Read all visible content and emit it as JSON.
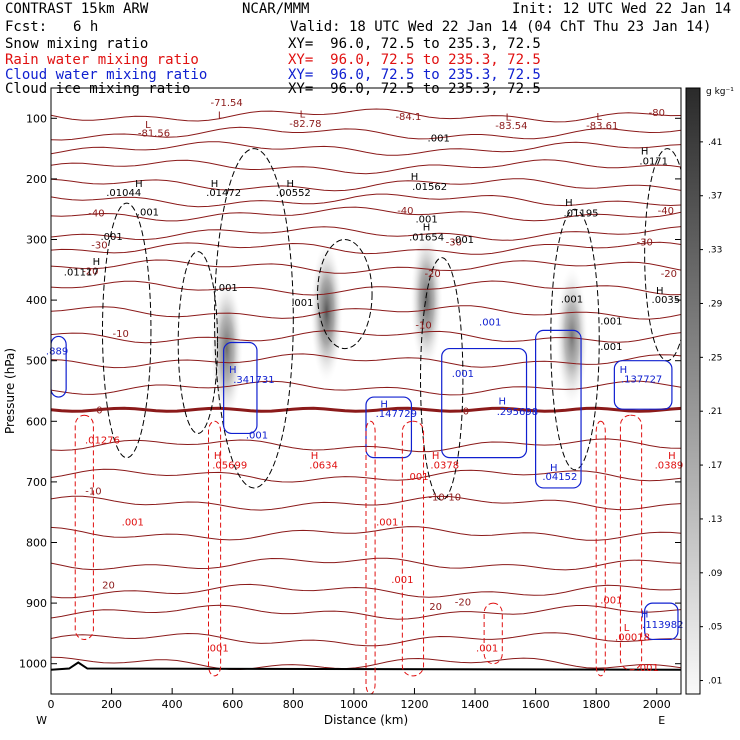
{
  "header": {
    "model": "CONTRAST 15km ARW",
    "center": "NCAR/MMM",
    "init": "Init: 12 UTC Wed 22 Jan 14",
    "fcst_label": "Fcst:",
    "fcst_value": "6 h",
    "valid": "Valid: 18 UTC Wed 22 Jan 14 (04 ChT Thu 23 Jan 14)",
    "fields": [
      {
        "name": "Snow mixing ratio",
        "xy": "XY=  96.0, 72.5 to 235.3, 72.5",
        "color": "#000000"
      },
      {
        "name": "Rain water mixing ratio",
        "xy": "XY=  96.0, 72.5 to 235.3, 72.5",
        "color": "#e01010"
      },
      {
        "name": "Cloud water mixing ratio",
        "xy": "XY=  96.0, 72.5 to 235.3, 72.5",
        "color": "#1020d0"
      },
      {
        "name": "Cloud ice mixing ratio",
        "xy": "XY=  96.0, 72.5 to 235.3, 72.5",
        "color": "#000000"
      }
    ]
  },
  "chart_data": {
    "type": "heatmap",
    "xlabel": "Distance (km)",
    "ylabel": "Pressure (hPa)",
    "xlim": [
      0,
      2080
    ],
    "ylim": [
      1050,
      50
    ],
    "x_ticks": [
      0,
      200,
      400,
      600,
      800,
      1000,
      1200,
      1400,
      1600,
      1800,
      2000
    ],
    "y_ticks": [
      100,
      200,
      300,
      400,
      500,
      600,
      700,
      800,
      900,
      1000
    ],
    "x_end_labels": {
      "left": "W",
      "right": "E"
    },
    "colorbar": {
      "unit": "g kg⁻¹",
      "ticks": [
        ".41",
        ".37",
        ".33",
        ".29",
        ".25",
        ".21",
        ".17",
        ".13",
        ".09",
        ".05",
        ".01"
      ],
      "values": [
        0.41,
        0.37,
        0.33,
        0.29,
        0.25,
        0.21,
        0.17,
        0.13,
        0.09,
        0.05,
        0.01
      ]
    },
    "snow_maxima": [
      {
        "x": 580,
        "p": 480,
        "value": 0.29
      },
      {
        "x": 910,
        "p": 420,
        "value": 0.41
      },
      {
        "x": 1240,
        "p": 400,
        "value": 0.33
      },
      {
        "x": 1720,
        "p": 460,
        "value": 0.25
      }
    ],
    "temperature_labels": [
      "-71.54",
      "-81.56",
      "-82.78",
      "-84.1",
      "-83.54",
      "-83.61",
      "-80",
      "-40",
      "-30",
      "-20",
      "-10",
      "0",
      "10",
      "20"
    ],
    "extrema_labels": [
      {
        "text": "L",
        "color": "#8b1a1a",
        "x": 560,
        "p": 100
      },
      {
        "text": "-71.54",
        "color": "#8b1a1a",
        "x": 580,
        "p": 80
      },
      {
        "text": "L",
        "color": "#8b1a1a",
        "x": 320,
        "p": 116
      },
      {
        "text": "-81.56",
        "color": "#8b1a1a",
        "x": 340,
        "p": 130
      },
      {
        "text": "L",
        "color": "#8b1a1a",
        "x": 830,
        "p": 99
      },
      {
        "text": "-82.78",
        "color": "#8b1a1a",
        "x": 840,
        "p": 114
      },
      {
        "text": "-84.1",
        "color": "#8b1a1a",
        "x": 1180,
        "p": 103
      },
      {
        "text": "L",
        "color": "#8b1a1a",
        "x": 1510,
        "p": 104
      },
      {
        "text": "-83.54",
        "color": "#8b1a1a",
        "x": 1520,
        "p": 118
      },
      {
        "text": "L",
        "color": "#8b1a1a",
        "x": 1810,
        "p": 103
      },
      {
        "text": "-83.61",
        "color": "#8b1a1a",
        "x": 1820,
        "p": 118
      },
      {
        "text": "-80",
        "color": "#8b1a1a",
        "x": 2000,
        "p": 96
      },
      {
        "text": "-40",
        "color": "#8b1a1a",
        "x": 150,
        "p": 262
      },
      {
        "text": "-40",
        "color": "#8b1a1a",
        "x": 1170,
        "p": 258
      },
      {
        "text": "-40",
        "color": "#8b1a1a",
        "x": 2030,
        "p": 258
      },
      {
        "text": "-30",
        "color": "#8b1a1a",
        "x": 160,
        "p": 315
      },
      {
        "text": "-30",
        "color": "#8b1a1a",
        "x": 1330,
        "p": 310
      },
      {
        "text": "-30",
        "color": "#8b1a1a",
        "x": 1960,
        "p": 310
      },
      {
        "text": "-20",
        "color": "#8b1a1a",
        "x": 130,
        "p": 358
      },
      {
        "text": "-20",
        "color": "#8b1a1a",
        "x": 1260,
        "p": 362
      },
      {
        "text": "-20",
        "color": "#8b1a1a",
        "x": 2040,
        "p": 362
      },
      {
        "text": "-10",
        "color": "#8b1a1a",
        "x": 230,
        "p": 461
      },
      {
        "text": "-10",
        "color": "#8b1a1a",
        "x": 1230,
        "p": 447
      },
      {
        "text": "0",
        "color": "#8b1a1a",
        "x": 160,
        "p": 587
      },
      {
        "text": "0",
        "color": "#8b1a1a",
        "x": 1370,
        "p": 589
      },
      {
        "text": "-10",
        "color": "#8b1a1a",
        "x": 140,
        "p": 721
      },
      {
        "text": "-10-10",
        "color": "#8b1a1a",
        "x": 1300,
        "p": 731
      },
      {
        "text": "20",
        "color": "#8b1a1a",
        "x": 190,
        "p": 876
      },
      {
        "text": "20",
        "color": "#8b1a1a",
        "x": 1270,
        "p": 911
      },
      {
        "text": "-20",
        "color": "#8b1a1a",
        "x": 1360,
        "p": 904
      },
      {
        "text": "H",
        "color": "#000000",
        "x": 290,
        "p": 213
      },
      {
        "text": ".01044",
        "color": "#000000",
        "x": 240,
        "p": 228
      },
      {
        "text": "H",
        "color": "#000000",
        "x": 540,
        "p": 213
      },
      {
        "text": ".01472",
        "color": "#000000",
        "x": 570,
        "p": 228
      },
      {
        "text": "H",
        "color": "#000000",
        "x": 790,
        "p": 213
      },
      {
        "text": ".00552",
        "color": "#000000",
        "x": 800,
        "p": 228
      },
      {
        "text": "H",
        "color": "#000000",
        "x": 1200,
        "p": 202
      },
      {
        "text": ".01562",
        "color": "#000000",
        "x": 1250,
        "p": 218
      },
      {
        "text": "H",
        "color": "#000000",
        "x": 1960,
        "p": 160
      },
      {
        "text": ".0171",
        "color": "#000000",
        "x": 1990,
        "p": 176
      },
      {
        "text": ".001",
        "color": "#000000",
        "x": 320,
        "p": 260
      },
      {
        "text": ".001",
        "color": "#000000",
        "x": 200,
        "p": 301
      },
      {
        "text": "H",
        "color": "#000000",
        "x": 150,
        "p": 342
      },
      {
        "text": ".01117",
        "color": "#000000",
        "x": 100,
        "p": 359
      },
      {
        "text": ".001",
        "color": "#000000",
        "x": 580,
        "p": 385
      },
      {
        "text": ".001",
        "color": "#000000",
        "x": 830,
        "p": 410
      },
      {
        "text": ".001",
        "color": "#000000",
        "x": 1280,
        "p": 138
      },
      {
        "text": ".001",
        "color": "#000000",
        "x": 1240,
        "p": 272
      },
      {
        "text": "H",
        "color": "#000000",
        "x": 1240,
        "p": 285
      },
      {
        "text": ".01654",
        "color": "#000000",
        "x": 1240,
        "p": 302
      },
      {
        "text": ".001",
        "color": "#000000",
        "x": 1360,
        "p": 306
      },
      {
        "text": "H",
        "color": "#000000",
        "x": 1710,
        "p": 245
      },
      {
        "text": ".01195",
        "color": "#000000",
        "x": 1750,
        "p": 262
      },
      {
        "text": ".001",
        "color": "#000000",
        "x": 1720,
        "p": 404
      },
      {
        "text": "H",
        "color": "#000000",
        "x": 2010,
        "p": 390
      },
      {
        "text": ".0035",
        "color": "#000000",
        "x": 2030,
        "p": 405
      },
      {
        "text": ".001",
        "color": "#000000",
        "x": 1850,
        "p": 482
      },
      {
        "text": ".001",
        "color": "#000000",
        "x": 1850,
        "p": 440
      },
      {
        "text": "H",
        "color": "#1020d0",
        "x": 600,
        "p": 520
      },
      {
        "text": ".341731",
        "color": "#1020d0",
        "x": 670,
        "p": 537
      },
      {
        "text": ".001",
        "color": "#1020d0",
        "x": 680,
        "p": 628
      },
      {
        "text": ".889",
        "color": "#1020d0",
        "x": 20,
        "p": 490
      },
      {
        "text": "H",
        "color": "#1020d0",
        "x": 1100,
        "p": 577
      },
      {
        "text": ".147729",
        "color": "#1020d0",
        "x": 1140,
        "p": 593
      },
      {
        "text": ".001",
        "color": "#1020d0",
        "x": 1450,
        "p": 442
      },
      {
        "text": ".001",
        "color": "#1020d0",
        "x": 1360,
        "p": 527
      },
      {
        "text": "H",
        "color": "#1020d0",
        "x": 1490,
        "p": 572
      },
      {
        "text": ".295698",
        "color": "#1020d0",
        "x": 1540,
        "p": 590
      },
      {
        "text": "H",
        "color": "#1020d0",
        "x": 1890,
        "p": 520
      },
      {
        "text": ".137727",
        "color": "#1020d0",
        "x": 1950,
        "p": 536
      },
      {
        "text": "H",
        "color": "#1020d0",
        "x": 1660,
        "p": 682
      },
      {
        "text": ".04152",
        "color": "#1020d0",
        "x": 1680,
        "p": 697
      },
      {
        "text": "H",
        "color": "#1020d0",
        "x": 1960,
        "p": 924
      },
      {
        "text": ".113982",
        "color": "#1020d0",
        "x": 2020,
        "p": 941
      },
      {
        "text": "H",
        "color": "#e01010",
        "x": 550,
        "p": 662
      },
      {
        "text": ".05699",
        "color": "#e01010",
        "x": 590,
        "p": 678
      },
      {
        "text": "H",
        "color": "#e01010",
        "x": 870,
        "p": 662
      },
      {
        "text": ".0634",
        "color": "#e01010",
        "x": 900,
        "p": 678
      },
      {
        "text": "H",
        "color": "#e01010",
        "x": 1270,
        "p": 662
      },
      {
        "text": ".0378",
        "color": "#e01010",
        "x": 1300,
        "p": 678
      },
      {
        "text": "H",
        "color": "#e01010",
        "x": 2050,
        "p": 662
      },
      {
        "text": ".0389",
        "color": "#e01010",
        "x": 2040,
        "p": 678
      },
      {
        "text": ".01276",
        "color": "#e01010",
        "x": 170,
        "p": 637
      },
      {
        "text": ".001",
        "color": "#e01010",
        "x": 270,
        "p": 772
      },
      {
        "text": ".001",
        "color": "#e01010",
        "x": 1210,
        "p": 697
      },
      {
        "text": ".001",
        "color": "#e01010",
        "x": 1110,
        "p": 772
      },
      {
        "text": ".001",
        "color": "#e01010",
        "x": 1160,
        "p": 867
      },
      {
        "text": ".001",
        "color": "#e01010",
        "x": 550,
        "p": 980
      },
      {
        "text": ".001",
        "color": "#e01010",
        "x": 1440,
        "p": 980
      },
      {
        "text": ".001",
        "color": "#e01010",
        "x": 1850,
        "p": 901
      },
      {
        "text": "L",
        "color": "#e01010",
        "x": 1900,
        "p": 946
      },
      {
        "text": ".00018",
        "color": "#e01010",
        "x": 1920,
        "p": 962
      },
      {
        "text": ".001",
        "color": "#e01010",
        "x": 1970,
        "p": 1012
      }
    ]
  }
}
